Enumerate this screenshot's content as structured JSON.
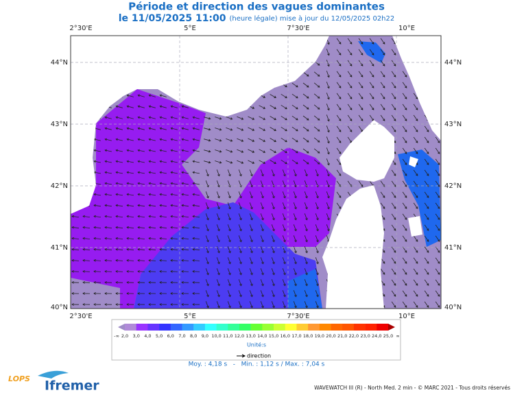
{
  "header": {
    "title": "Période et direction des vagues dominantes",
    "date": "le 11/05/2025 11:00",
    "update": "(heure légale) mise à jour du 12/05/2025 02h22"
  },
  "map": {
    "lon_labels": [
      "2°30'E",
      "5°E",
      "7°30'E",
      "10°E"
    ],
    "lat_labels": [
      "44°N",
      "43°N",
      "42°N",
      "41°N",
      "40°N"
    ]
  },
  "legend": {
    "scale_labels": [
      "-∞",
      "2,0",
      "3,0",
      "4,0",
      "5,0",
      "6,0",
      "7,0",
      "8,0",
      "9,0",
      "10,0",
      "11,0",
      "12,0",
      "13,0",
      "14,0",
      "15,0",
      "16,0",
      "17,0",
      "18,0",
      "19,0",
      "20,0",
      "21,0",
      "22,0",
      "23,0",
      "24,0",
      "25,0",
      "∞"
    ],
    "unit": "Unité:s",
    "arrow_label": "direction"
  },
  "stats": "Moy. : 4,18 s   -   Min. : 1,12 s / Max. : 7,04 s",
  "footer": {
    "credit": "WAVEWATCH III (R) - North Med. 2 min - © MARC 2021 - Tous droits réservés",
    "logo_lops": "LOPS",
    "logo_ifremer": "Ifremer"
  }
}
